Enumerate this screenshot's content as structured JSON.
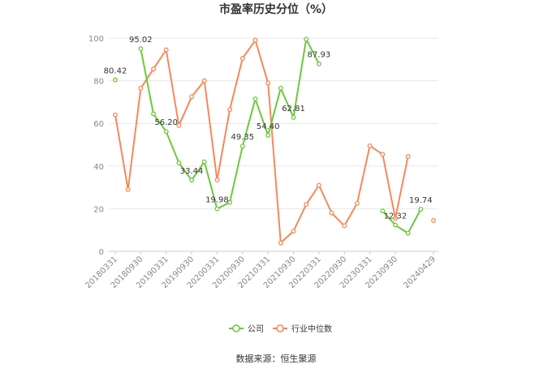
{
  "chart_data": {
    "type": "line",
    "title": "市盈率历史分位（%）",
    "xlabel": "",
    "ylabel": "",
    "ylim": [
      0,
      100
    ],
    "yticks": [
      0,
      20,
      40,
      60,
      80,
      100
    ],
    "grid": true,
    "legend_position": "bottom",
    "x": [
      "20180331",
      "20180630",
      "20180930",
      "20181231",
      "20190331",
      "20190630",
      "20190930",
      "20191231",
      "20200331",
      "20200630",
      "20200930",
      "20201231",
      "20210331",
      "20210630",
      "20210930",
      "20211231",
      "20220331",
      "20220630",
      "20220930",
      "20221231",
      "20230331",
      "20230630",
      "20230930",
      "20231231",
      "20240331",
      "20240429"
    ],
    "xtick_labels": [
      "20180331",
      "20180930",
      "20190331",
      "20190930",
      "20200331",
      "20200930",
      "20210331",
      "20210930",
      "20220331",
      "20220930",
      "20230331",
      "20230930",
      "20240429"
    ],
    "series": [
      {
        "name": "公司",
        "color": "#6dc83c",
        "values": [
          80.42,
          null,
          95.02,
          64.5,
          56.2,
          41.5,
          33.44,
          42.0,
          19.98,
          23.0,
          49.35,
          71.5,
          54.4,
          76.5,
          62.81,
          99.5,
          87.93,
          null,
          null,
          null,
          null,
          19.0,
          12.32,
          8.5,
          19.74,
          null
        ]
      },
      {
        "name": "行业中位数",
        "color": "#f5895a",
        "values": [
          64.0,
          29.0,
          76.5,
          85.5,
          94.5,
          59.0,
          72.5,
          80.0,
          33.5,
          66.5,
          90.5,
          99.0,
          79.0,
          4.0,
          9.5,
          22.0,
          31.0,
          18.0,
          12.0,
          22.5,
          49.5,
          45.5,
          15.5,
          44.5,
          null,
          14.5
        ]
      }
    ],
    "data_labels": [
      {
        "series": 0,
        "index": 0,
        "text": "80.42"
      },
      {
        "series": 0,
        "index": 2,
        "text": "95.02"
      },
      {
        "series": 0,
        "index": 4,
        "text": "56.20"
      },
      {
        "series": 0,
        "index": 6,
        "text": "33.44"
      },
      {
        "series": 0,
        "index": 8,
        "text": "19.98"
      },
      {
        "series": 0,
        "index": 10,
        "text": "49.35"
      },
      {
        "series": 0,
        "index": 12,
        "text": "54.40"
      },
      {
        "series": 0,
        "index": 14,
        "text": "62.81"
      },
      {
        "series": 0,
        "index": 16,
        "text": "87.93"
      },
      {
        "series": 0,
        "index": 22,
        "text": "12.32"
      },
      {
        "series": 0,
        "index": 24,
        "text": "19.74"
      }
    ]
  },
  "footer": {
    "source": "数据来源：恒生聚源"
  }
}
